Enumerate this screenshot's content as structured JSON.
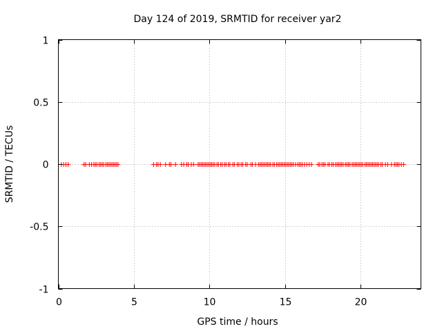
{
  "chart_data": {
    "type": "scatter",
    "title": "Day 124 of 2019, SRMTID for receiver yar2",
    "xlabel": "GPS time / hours",
    "ylabel": "SRMTID / TECUs",
    "xlim": [
      0,
      24
    ],
    "ylim": [
      -1,
      1
    ],
    "xticks": [
      0,
      5,
      10,
      15,
      20
    ],
    "xtick_labels": [
      "0",
      "5",
      "10",
      "15",
      "20"
    ],
    "yticks": [
      -1,
      -0.5,
      0,
      0.5,
      1
    ],
    "ytick_labels": [
      "-1",
      "-0.5",
      "0",
      "0.5",
      "1"
    ],
    "grid": true,
    "marker": "+",
    "color": "#ff0000",
    "series": [
      {
        "name": "SRMTID",
        "points": [
          [
            0.2,
            0
          ],
          [
            0.35,
            0
          ],
          [
            0.5,
            0
          ],
          [
            0.65,
            0
          ],
          [
            1.7,
            0
          ],
          [
            1.8,
            0
          ],
          [
            2.05,
            0
          ],
          [
            2.2,
            0
          ],
          [
            2.35,
            0
          ],
          [
            2.45,
            0
          ],
          [
            2.55,
            0
          ],
          [
            2.7,
            0
          ],
          [
            2.8,
            0
          ],
          [
            2.9,
            0
          ],
          [
            3.0,
            0
          ],
          [
            3.15,
            0
          ],
          [
            3.25,
            0
          ],
          [
            3.35,
            0
          ],
          [
            3.45,
            0
          ],
          [
            3.55,
            0
          ],
          [
            3.65,
            0
          ],
          [
            3.75,
            0
          ],
          [
            3.85,
            0
          ],
          [
            3.95,
            0
          ],
          [
            6.3,
            0
          ],
          [
            6.5,
            0
          ],
          [
            6.6,
            0
          ],
          [
            6.75,
            0
          ],
          [
            7.1,
            0
          ],
          [
            7.35,
            0
          ],
          [
            7.45,
            0
          ],
          [
            7.75,
            0
          ],
          [
            8.15,
            0
          ],
          [
            8.3,
            0
          ],
          [
            8.5,
            0
          ],
          [
            8.6,
            0
          ],
          [
            8.8,
            0
          ],
          [
            8.95,
            0
          ],
          [
            9.25,
            0
          ],
          [
            9.35,
            0
          ],
          [
            9.45,
            0
          ],
          [
            9.55,
            0
          ],
          [
            9.65,
            0
          ],
          [
            9.75,
            0
          ],
          [
            9.85,
            0
          ],
          [
            9.95,
            0
          ],
          [
            10.05,
            0
          ],
          [
            10.15,
            0
          ],
          [
            10.25,
            0
          ],
          [
            10.35,
            0
          ],
          [
            10.5,
            0
          ],
          [
            10.6,
            0
          ],
          [
            10.75,
            0
          ],
          [
            10.85,
            0
          ],
          [
            11.0,
            0
          ],
          [
            11.1,
            0
          ],
          [
            11.25,
            0
          ],
          [
            11.35,
            0
          ],
          [
            11.55,
            0
          ],
          [
            11.65,
            0
          ],
          [
            11.85,
            0
          ],
          [
            11.95,
            0
          ],
          [
            12.1,
            0
          ],
          [
            12.2,
            0
          ],
          [
            12.4,
            0
          ],
          [
            12.5,
            0
          ],
          [
            12.75,
            0
          ],
          [
            12.85,
            0
          ],
          [
            13.05,
            0
          ],
          [
            13.25,
            0
          ],
          [
            13.35,
            0
          ],
          [
            13.45,
            0
          ],
          [
            13.55,
            0
          ],
          [
            13.65,
            0
          ],
          [
            13.75,
            0
          ],
          [
            13.85,
            0
          ],
          [
            13.95,
            0
          ],
          [
            14.05,
            0
          ],
          [
            14.2,
            0
          ],
          [
            14.3,
            0
          ],
          [
            14.45,
            0
          ],
          [
            14.55,
            0
          ],
          [
            14.65,
            0
          ],
          [
            14.75,
            0
          ],
          [
            14.85,
            0
          ],
          [
            14.95,
            0
          ],
          [
            15.05,
            0
          ],
          [
            15.15,
            0
          ],
          [
            15.25,
            0
          ],
          [
            15.35,
            0
          ],
          [
            15.45,
            0
          ],
          [
            15.55,
            0
          ],
          [
            15.7,
            0
          ],
          [
            15.85,
            0
          ],
          [
            15.95,
            0
          ],
          [
            16.05,
            0
          ],
          [
            16.15,
            0
          ],
          [
            16.3,
            0
          ],
          [
            16.45,
            0
          ],
          [
            16.6,
            0
          ],
          [
            16.75,
            0
          ],
          [
            17.2,
            0
          ],
          [
            17.3,
            0
          ],
          [
            17.45,
            0
          ],
          [
            17.55,
            0
          ],
          [
            17.65,
            0
          ],
          [
            17.85,
            0
          ],
          [
            17.95,
            0
          ],
          [
            18.1,
            0
          ],
          [
            18.2,
            0
          ],
          [
            18.35,
            0
          ],
          [
            18.45,
            0
          ],
          [
            18.55,
            0
          ],
          [
            18.65,
            0
          ],
          [
            18.75,
            0
          ],
          [
            18.85,
            0
          ],
          [
            19.0,
            0
          ],
          [
            19.1,
            0
          ],
          [
            19.2,
            0
          ],
          [
            19.3,
            0
          ],
          [
            19.45,
            0
          ],
          [
            19.55,
            0
          ],
          [
            19.65,
            0
          ],
          [
            19.75,
            0
          ],
          [
            19.85,
            0
          ],
          [
            19.95,
            0
          ],
          [
            20.05,
            0
          ],
          [
            20.15,
            0
          ],
          [
            20.3,
            0
          ],
          [
            20.4,
            0
          ],
          [
            20.5,
            0
          ],
          [
            20.6,
            0
          ],
          [
            20.7,
            0
          ],
          [
            20.8,
            0
          ],
          [
            20.9,
            0
          ],
          [
            21.0,
            0
          ],
          [
            21.1,
            0
          ],
          [
            21.2,
            0
          ],
          [
            21.35,
            0
          ],
          [
            21.45,
            0
          ],
          [
            21.65,
            0
          ],
          [
            21.8,
            0
          ],
          [
            22.05,
            0
          ],
          [
            22.25,
            0
          ],
          [
            22.35,
            0
          ],
          [
            22.45,
            0
          ],
          [
            22.55,
            0
          ],
          [
            22.7,
            0
          ],
          [
            22.85,
            0
          ]
        ]
      }
    ]
  }
}
